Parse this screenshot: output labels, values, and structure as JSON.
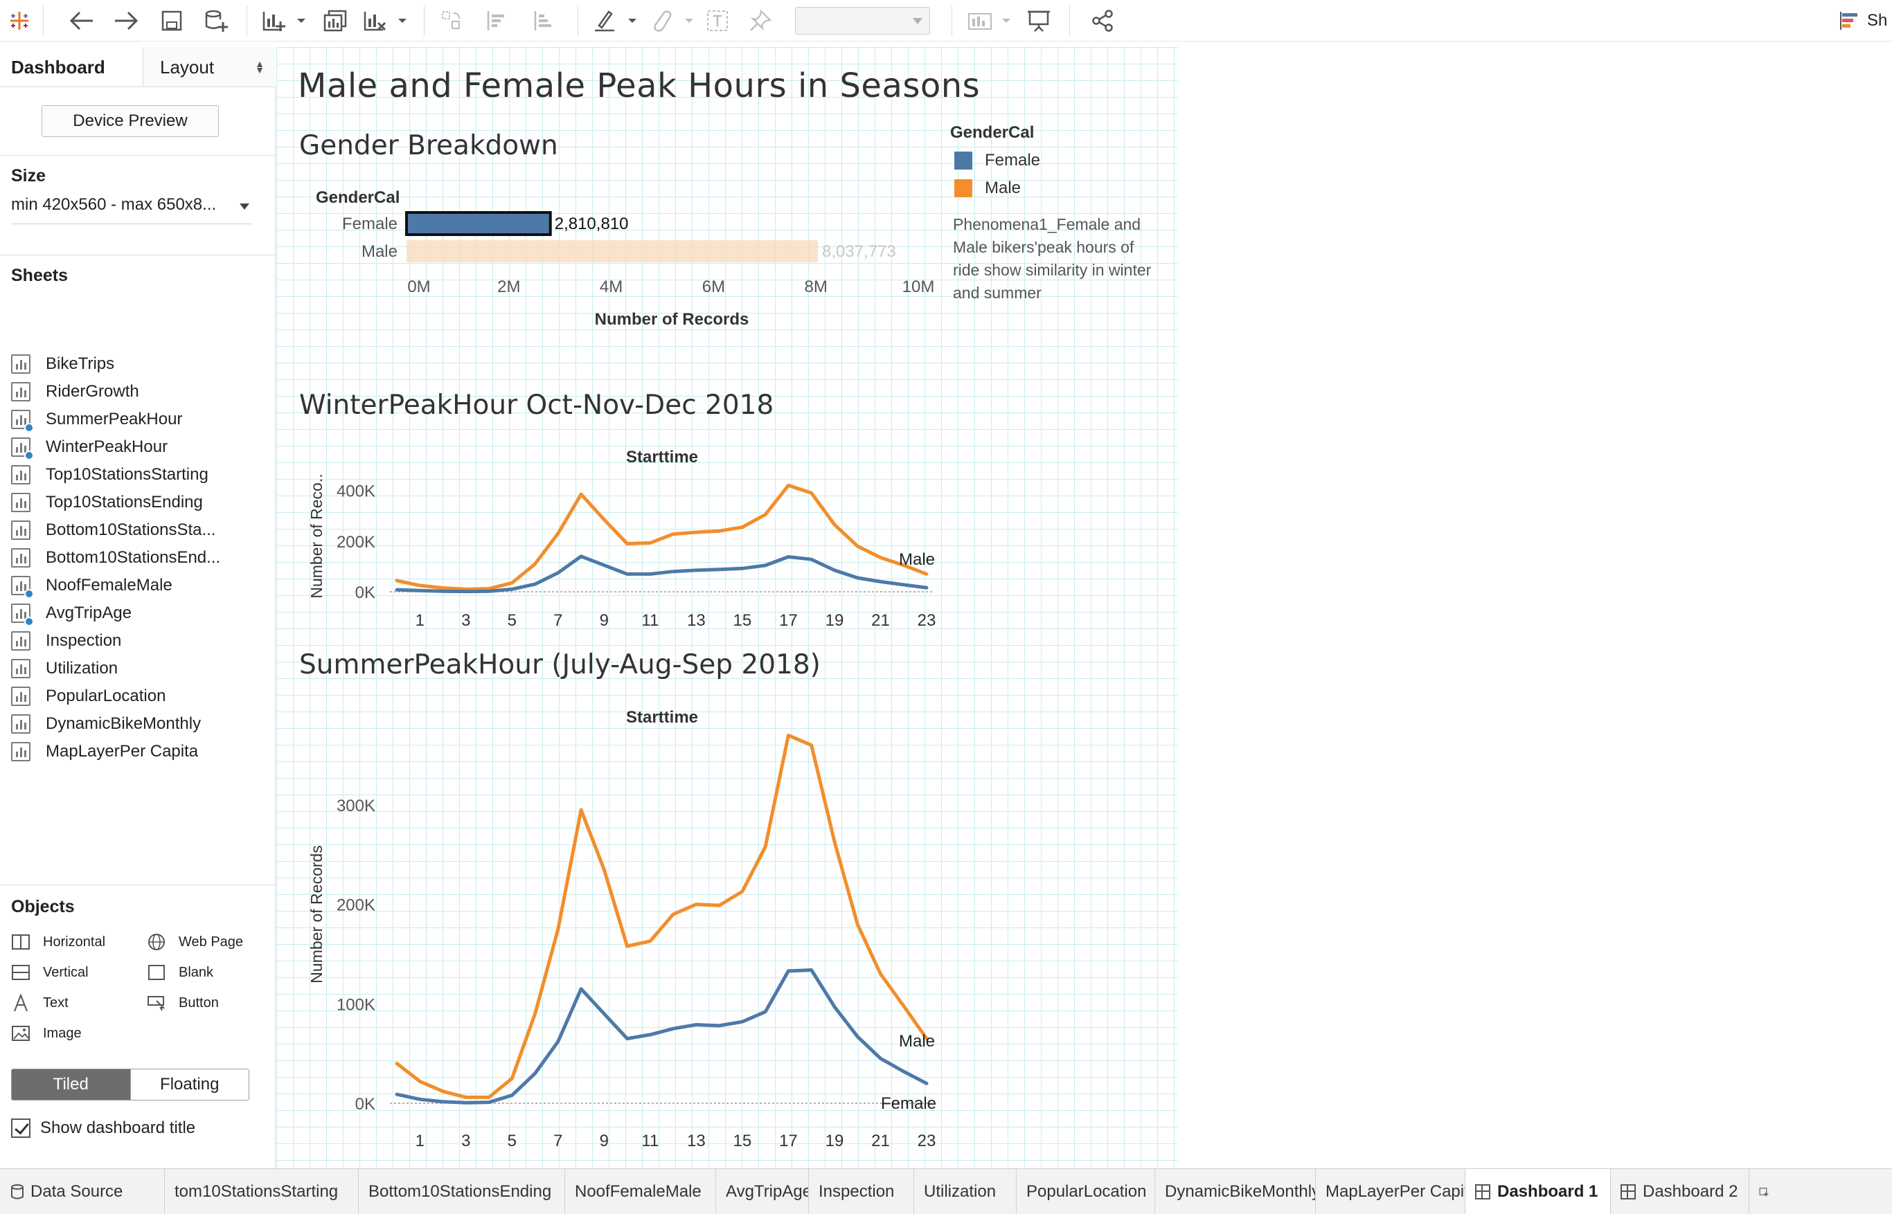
{
  "toolbar": {
    "right_label": "Sh"
  },
  "left_pane": {
    "tab_dashboard": "Dashboard",
    "tab_layout": "Layout",
    "device_preview": "Device Preview",
    "size_title": "Size",
    "size_value": "min 420x560 - max 650x8...",
    "sheets_title": "Sheets",
    "sheets": [
      {
        "label": "BikeTrips",
        "checked": false
      },
      {
        "label": "RiderGrowth",
        "checked": false
      },
      {
        "label": "SummerPeakHour",
        "checked": true
      },
      {
        "label": "WinterPeakHour",
        "checked": true
      },
      {
        "label": "Top10StationsStarting",
        "checked": false
      },
      {
        "label": "Top10StationsEnding",
        "checked": false
      },
      {
        "label": "Bottom10StationsSta...",
        "checked": false
      },
      {
        "label": "Bottom10StationsEnd...",
        "checked": false
      },
      {
        "label": "NoofFemaleMale",
        "checked": true
      },
      {
        "label": "AvgTripAge",
        "checked": true
      },
      {
        "label": "Inspection",
        "checked": false
      },
      {
        "label": "Utilization",
        "checked": false
      },
      {
        "label": "PopularLocation",
        "checked": false
      },
      {
        "label": "DynamicBikeMonthly",
        "checked": false
      },
      {
        "label": "MapLayerPer Capita",
        "checked": false
      }
    ],
    "objects_title": "Objects",
    "objects": [
      {
        "label": "Horizontal",
        "icon": "horizontal-icon"
      },
      {
        "label": "Web Page",
        "icon": "globe-icon"
      },
      {
        "label": "Vertical",
        "icon": "vertical-icon"
      },
      {
        "label": "Blank",
        "icon": "blank-icon"
      },
      {
        "label": "Text",
        "icon": "text-icon"
      },
      {
        "label": "Button",
        "icon": "button-icon"
      },
      {
        "label": "Image",
        "icon": "image-icon"
      }
    ],
    "tiled": "Tiled",
    "floating": "Floating",
    "show_title": "Show dashboard title"
  },
  "dashboard": {
    "title": "Male and Female Peak Hours in Seasons",
    "legend_title": "GenderCal",
    "legend": [
      {
        "label": "Female",
        "color": "#4e79a7"
      },
      {
        "label": "Male",
        "color": "#f28e2b"
      }
    ],
    "note": "Phenomena1_Female and Male bikers'peak hours of ride show similarity in winter and summer"
  },
  "chart_data": [
    {
      "type": "bar",
      "title": "Gender Breakdown",
      "row_header": "GenderCal",
      "categories": [
        "Female",
        "Male"
      ],
      "values": [
        2810810,
        8037773
      ],
      "value_labels": [
        "2,810,810",
        "8,037,773"
      ],
      "selected": "Female",
      "xlabel": "Number of Records",
      "xticks": [
        "0M",
        "2M",
        "4M",
        "6M",
        "8M",
        "10M"
      ],
      "xlim": [
        0,
        10000000
      ]
    },
    {
      "type": "line",
      "title": "WinterPeakHour Oct-Nov-Dec 2018",
      "column_header": "Starttime",
      "ylabel": "Number of Reco..",
      "yticks": [
        "0K",
        "200K",
        "400K"
      ],
      "ylim": [
        0,
        440000
      ],
      "xticks": [
        "1",
        "3",
        "5",
        "7",
        "9",
        "11",
        "13",
        "15",
        "17",
        "19",
        "21",
        "23"
      ],
      "x": [
        0,
        1,
        2,
        3,
        4,
        5,
        6,
        7,
        8,
        9,
        10,
        11,
        12,
        13,
        14,
        15,
        16,
        17,
        18,
        19,
        20,
        21,
        22,
        23
      ],
      "series": [
        {
          "name": "Male",
          "color": "#f28e2b",
          "values": [
            44000,
            25000,
            15000,
            10000,
            12000,
            35000,
            110000,
            230000,
            385000,
            285000,
            190000,
            193000,
            228000,
            235000,
            240000,
            255000,
            305000,
            420000,
            390000,
            265000,
            180000,
            135000,
            105000,
            70000
          ]
        },
        {
          "name": "Female",
          "color": "#4e79a7",
          "values": [
            8000,
            5000,
            2000,
            1000,
            2000,
            10000,
            30000,
            75000,
            140000,
            105000,
            70000,
            70000,
            80000,
            85000,
            88000,
            92000,
            104000,
            138000,
            128000,
            85000,
            55000,
            40000,
            28000,
            16000
          ]
        }
      ],
      "end_label": "Male"
    },
    {
      "type": "line",
      "title": "SummerPeakHour (July-Aug-Sep 2018)",
      "column_header": "Starttime",
      "ylabel": "Number of Records",
      "yticks": [
        "0K",
        "100K",
        "200K",
        "300K"
      ],
      "ylim": [
        0,
        380000
      ],
      "xticks": [
        "1",
        "3",
        "5",
        "7",
        "9",
        "11",
        "13",
        "15",
        "17",
        "19",
        "21",
        "23"
      ],
      "x": [
        0,
        1,
        2,
        3,
        4,
        5,
        6,
        7,
        8,
        9,
        10,
        11,
        12,
        13,
        14,
        15,
        16,
        17,
        18,
        19,
        20,
        21,
        22,
        23
      ],
      "series": [
        {
          "name": "Male",
          "color": "#f28e2b",
          "values": [
            40000,
            22000,
            12000,
            6000,
            6000,
            25000,
            90000,
            175000,
            295000,
            235000,
            158000,
            163000,
            190000,
            200000,
            199000,
            213000,
            258000,
            370000,
            360000,
            263000,
            180000,
            130000,
            98000,
            65000
          ]
        },
        {
          "name": "Female",
          "color": "#4e79a7",
          "values": [
            9000,
            4000,
            1500,
            500,
            1000,
            8000,
            30000,
            62000,
            115000,
            90000,
            65000,
            69000,
            75000,
            79000,
            78000,
            82000,
            92000,
            133000,
            134000,
            97000,
            67000,
            45000,
            32000,
            20000
          ]
        }
      ],
      "end_labels": [
        "Male",
        "Female"
      ]
    }
  ],
  "bottom_tabs": [
    {
      "label": "Data Source",
      "active": false
    },
    {
      "label": "tom10StationsStarting",
      "active": false
    },
    {
      "label": "Bottom10StationsEnding",
      "active": false
    },
    {
      "label": "NoofFemaleMale",
      "active": false
    },
    {
      "label": "AvgTripAge",
      "active": false
    },
    {
      "label": "Inspection",
      "active": false
    },
    {
      "label": "Utilization",
      "active": false
    },
    {
      "label": "PopularLocation",
      "active": false
    },
    {
      "label": "DynamicBikeMonthly",
      "active": false
    },
    {
      "label": "MapLayerPer Capita",
      "active": false
    },
    {
      "label": "Dashboard 1",
      "active": true
    },
    {
      "label": "Dashboard 2",
      "active": false
    }
  ]
}
